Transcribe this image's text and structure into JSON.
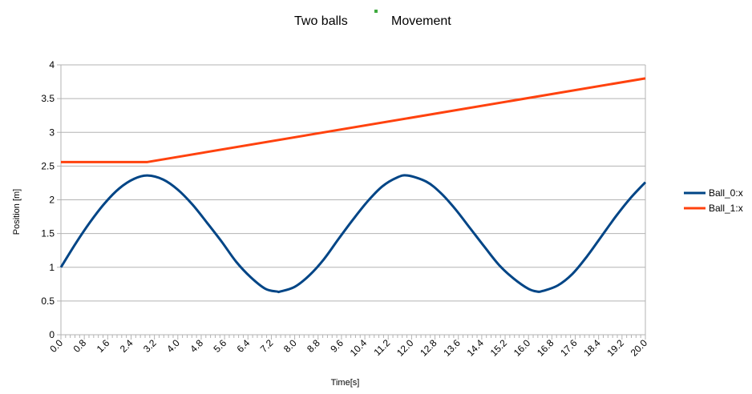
{
  "chart_data": {
    "type": "line",
    "title_parts": [
      "Two balls",
      "Movement"
    ],
    "xlabel": "Time[s]",
    "ylabel": "Position [m]",
    "xlim": [
      0,
      20
    ],
    "ylim": [
      0,
      4
    ],
    "x_tick_labels": [
      "0.0",
      "0.8",
      "1.6",
      "2.4",
      "3.2",
      "4.0",
      "4.8",
      "5.6",
      "6.4",
      "7.2",
      "8.0",
      "8.8",
      "9.6",
      "10.4",
      "11.2",
      "12.0",
      "12.8",
      "13.6",
      "14.4",
      "15.2",
      "16.0",
      "16.8",
      "17.6",
      "18.4",
      "19.2",
      "20.0"
    ],
    "x_ticks": [
      0.0,
      0.8,
      1.6,
      2.4,
      3.2,
      4.0,
      4.8,
      5.6,
      6.4,
      7.2,
      8.0,
      8.8,
      9.6,
      10.4,
      11.2,
      12.0,
      12.8,
      13.6,
      14.4,
      15.2,
      16.0,
      16.8,
      17.6,
      18.4,
      19.2,
      20.0
    ],
    "y_ticks": [
      0,
      0.5,
      1,
      1.5,
      2,
      2.5,
      3,
      3.5,
      4
    ],
    "y_tick_labels": [
      "0",
      "0.5",
      "1",
      "1.5",
      "2",
      "2.5",
      "3",
      "3.5",
      "4"
    ],
    "grid": true,
    "legend_position": "right",
    "series": [
      {
        "name": "Ball_0:x",
        "color": "#004586",
        "x": [
          0,
          0.5,
          1,
          1.5,
          2,
          2.5,
          2.96,
          3.5,
          4,
          4.5,
          5,
          5.5,
          6,
          6.5,
          7,
          7.4,
          7.5,
          8,
          8.5,
          9,
          9.5,
          10,
          10.5,
          11,
          11.5,
          11.86,
          12.5,
          13,
          13.5,
          14,
          14.5,
          15,
          15.5,
          16,
          16.3,
          16.5,
          17,
          17.5,
          18,
          18.5,
          19,
          19.5,
          20
        ],
        "y": [
          1.0,
          1.35,
          1.67,
          1.95,
          2.17,
          2.31,
          2.36,
          2.3,
          2.15,
          1.93,
          1.66,
          1.38,
          1.08,
          0.85,
          0.68,
          0.64,
          0.64,
          0.71,
          0.88,
          1.12,
          1.42,
          1.71,
          1.98,
          2.2,
          2.33,
          2.36,
          2.27,
          2.1,
          1.86,
          1.58,
          1.3,
          1.03,
          0.83,
          0.68,
          0.64,
          0.65,
          0.73,
          0.9,
          1.16,
          1.46,
          1.76,
          2.03,
          2.26
        ]
      },
      {
        "name": "Ball_1:x",
        "color": "#ff420e",
        "x": [
          0,
          2.96,
          20
        ],
        "y": [
          2.56,
          2.56,
          3.8
        ]
      }
    ]
  }
}
